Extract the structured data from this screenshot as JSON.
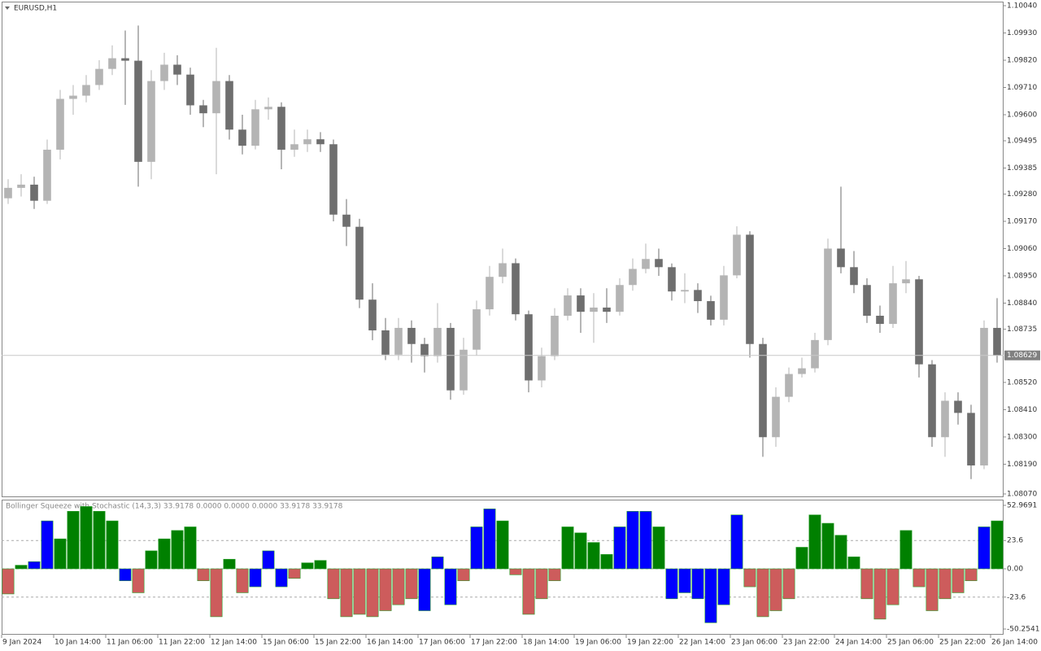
{
  "chart_data": [
    {
      "type": "candlestick",
      "title": "EURUSD,H1",
      "open": [
        1.09263,
        1.09305,
        1.09318,
        1.09253,
        1.09459,
        1.09664,
        1.09677,
        1.0972,
        1.09785,
        1.09828,
        1.09818,
        1.0941,
        1.09736,
        1.09802,
        1.09762,
        1.09638,
        1.09606,
        1.09736,
        1.0954,
        1.09475,
        1.09622,
        1.09632,
        1.09459,
        1.09481,
        1.09501,
        1.09481,
        1.09197,
        1.09148,
        1.08854,
        1.0873,
        1.08632,
        1.0874,
        1.08675,
        1.08626,
        1.0874,
        1.08488,
        1.08652,
        1.08815,
        1.08946,
        1.09001,
        1.08795,
        1.08528,
        1.08626,
        1.08789,
        1.08871,
        1.08805,
        1.08822,
        1.08805,
        1.08913,
        1.08978,
        1.09018,
        1.08985,
        1.08887,
        1.08893,
        1.08848,
        1.08773,
        1.08952,
        1.09116,
        1.08675,
        1.08299,
        1.08462,
        1.08554,
        1.08577,
        1.08691,
        1.0906,
        1.08985,
        1.08913,
        1.08789,
        1.08756,
        1.0892,
        1.08936,
        1.08593,
        1.08299,
        1.08446,
        1.08397,
        1.08185,
        1.0874
      ],
      "high": [
        1.0934,
        1.0936,
        1.0935,
        1.095,
        1.097,
        1.0972,
        1.0976,
        1.0982,
        1.0988,
        1.0994,
        1.0996,
        1.0978,
        1.0985,
        1.0984,
        1.0979,
        1.0966,
        1.0987,
        1.0976,
        1.096,
        1.0966,
        1.0967,
        1.0965,
        1.0954,
        1.0954,
        1.0953,
        1.095,
        1.0926,
        1.0918,
        1.0892,
        1.0878,
        1.0878,
        1.0877,
        1.087,
        1.0884,
        1.0876,
        1.087,
        1.0885,
        1.0899,
        1.0906,
        1.0902,
        1.0881,
        1.0866,
        1.0882,
        1.089,
        1.089,
        1.0888,
        1.089,
        1.0894,
        1.0902,
        1.0908,
        1.0906,
        1.09,
        1.0896,
        1.0892,
        1.0887,
        1.0899,
        1.0915,
        1.0913,
        1.087,
        1.085,
        1.0858,
        1.0862,
        1.0872,
        1.091,
        1.0931,
        1.0905,
        1.0894,
        1.0883,
        1.0899,
        1.0901,
        1.0895,
        1.0861,
        1.0848,
        1.0848,
        1.0843,
        1.0877,
        1.0886
      ],
      "low": [
        1.0924,
        1.0927,
        1.0922,
        1.0924,
        1.0942,
        1.096,
        1.0965,
        1.097,
        1.0976,
        1.0964,
        1.0931,
        1.0934,
        1.097,
        1.0972,
        1.096,
        1.0955,
        1.0936,
        1.095,
        1.0944,
        1.0946,
        1.0958,
        1.0938,
        1.0943,
        1.0945,
        1.0945,
        1.0917,
        1.0907,
        1.0882,
        1.0869,
        1.0861,
        1.0861,
        1.086,
        1.0856,
        1.086,
        1.0845,
        1.0847,
        1.0863,
        1.0879,
        1.0892,
        1.0877,
        1.0848,
        1.085,
        1.0861,
        1.0877,
        1.0872,
        1.0868,
        1.0876,
        1.0879,
        1.0889,
        1.0896,
        1.0895,
        1.0885,
        1.0884,
        1.088,
        1.0875,
        1.0875,
        1.0894,
        1.0862,
        1.0822,
        1.0826,
        1.0844,
        1.0854,
        1.0856,
        1.0867,
        1.0896,
        1.0888,
        1.0876,
        1.0872,
        1.0874,
        1.0888,
        1.0854,
        1.0826,
        1.0822,
        1.0835,
        1.0813,
        1.0817,
        1.086
      ],
      "close": [
        1.09305,
        1.09318,
        1.09253,
        1.09459,
        1.09664,
        1.09677,
        1.0972,
        1.09785,
        1.09828,
        1.09818,
        1.0941,
        1.09736,
        1.09802,
        1.09762,
        1.09638,
        1.09606,
        1.09736,
        1.0954,
        1.09475,
        1.09622,
        1.09632,
        1.09459,
        1.09481,
        1.09501,
        1.09481,
        1.09197,
        1.09148,
        1.08854,
        1.0873,
        1.08632,
        1.0874,
        1.08675,
        1.08626,
        1.0874,
        1.08488,
        1.08652,
        1.08815,
        1.08946,
        1.09001,
        1.08795,
        1.08528,
        1.08626,
        1.08789,
        1.08871,
        1.08805,
        1.08822,
        1.08805,
        1.08913,
        1.08978,
        1.09018,
        1.08985,
        1.08887,
        1.08893,
        1.08848,
        1.08773,
        1.08952,
        1.09116,
        1.08675,
        1.08299,
        1.08462,
        1.08554,
        1.08577,
        1.08691,
        1.0906,
        1.08985,
        1.08913,
        1.08789,
        1.08756,
        1.0892,
        1.08936,
        1.08593,
        1.08299,
        1.08446,
        1.08397,
        1.08185,
        1.0874,
        1.08629
      ],
      "up_color": "#b4b4b4",
      "down_color": "#6e6e6e",
      "ylim": [
        1.0807,
        1.1004
      ],
      "yticks": [
        {
          "value": 1.1004,
          "label": "1.10040"
        },
        {
          "value": 1.0993,
          "label": "1.09930"
        },
        {
          "value": 1.0982,
          "label": "1.09820"
        },
        {
          "value": 1.0971,
          "label": "1.09710"
        },
        {
          "value": 1.096,
          "label": "1.09600"
        },
        {
          "value": 1.09495,
          "label": "1.09495"
        },
        {
          "value": 1.09385,
          "label": "1.09385"
        },
        {
          "value": 1.0928,
          "label": "1.09280"
        },
        {
          "value": 1.0917,
          "label": "1.09170"
        },
        {
          "value": 1.0906,
          "label": "1.09060"
        },
        {
          "value": 1.0895,
          "label": "1.08950"
        },
        {
          "value": 1.0884,
          "label": "1.08840"
        },
        {
          "value": 1.08735,
          "label": "1.08735"
        },
        {
          "value": 1.0852,
          "label": "1.08520"
        },
        {
          "value": 1.0841,
          "label": "1.08410"
        },
        {
          "value": 1.083,
          "label": "1.08300"
        },
        {
          "value": 1.0819,
          "label": "1.08190"
        },
        {
          "value": 1.0807,
          "label": "1.08070"
        }
      ],
      "current_price": {
        "value": 1.08629,
        "label": "1.08629"
      }
    },
    {
      "type": "bar",
      "title": "Bollinger Squeeze with Stochastic (14,3,3) 33.9178 0.0000 0.0000 0.0000 33.9178 33.9178",
      "categories": [
        "9 Jan 2024",
        null,
        null,
        null,
        "10 Jan 14:00",
        null,
        null,
        null,
        "11 Jan 06:00",
        null,
        null,
        null,
        "11 Jan 22:00",
        null,
        null,
        null,
        "12 Jan 14:00",
        null,
        null,
        null,
        "15 Jan 06:00",
        null,
        null,
        null,
        "15 Jan 22:00",
        null,
        null,
        null,
        "16 Jan 14:00",
        null,
        null,
        null,
        "17 Jan 06:00",
        null,
        null,
        null,
        "17 Jan 22:00",
        null,
        null,
        null,
        "18 Jan 14:00",
        null,
        null,
        null,
        "19 Jan 06:00",
        null,
        null,
        null,
        "19 Jan 22:00",
        null,
        null,
        null,
        "22 Jan 14:00",
        null,
        null,
        null,
        "23 Jan 06:00",
        null,
        null,
        null,
        "23 Jan 22:00",
        null,
        null,
        null,
        "24 Jan 14:00",
        null,
        null,
        null,
        "25 Jan 06:00",
        null,
        null,
        null,
        "25 Jan 22:00",
        null,
        null,
        null,
        "26 Jan 14:00"
      ],
      "values": [
        -21,
        3,
        6,
        40,
        25,
        48,
        52,
        48,
        40,
        -10,
        -20,
        15,
        25,
        32,
        35,
        -10,
        -40,
        8,
        -20,
        -15,
        15,
        -15,
        -8,
        5,
        7,
        -25,
        -40,
        -38,
        -40,
        -35,
        -30,
        -25,
        -35,
        10,
        -30,
        -10,
        35,
        50,
        40,
        -5,
        -38,
        -25,
        -10,
        35,
        30,
        22,
        12,
        35,
        48,
        48,
        35,
        -25,
        -20,
        -25,
        -45,
        -30,
        45,
        -15,
        -40,
        -35,
        -25,
        18,
        45,
        38,
        28,
        10,
        -25,
        -42,
        -30,
        32,
        -15,
        -35,
        -25,
        -20,
        -10,
        35,
        40
      ],
      "colors": [
        "#cd5c5c",
        "#008000",
        "#0000ff",
        "#0000ff",
        "#008000",
        "#008000",
        "#008000",
        "#008000",
        "#008000",
        "#0000ff",
        "#cd5c5c",
        "#008000",
        "#008000",
        "#008000",
        "#008000",
        "#cd5c5c",
        "#cd5c5c",
        "#008000",
        "#cd5c5c",
        "#0000ff",
        "#0000ff",
        "#0000ff",
        "#cd5c5c",
        "#008000",
        "#008000",
        "#cd5c5c",
        "#cd5c5c",
        "#cd5c5c",
        "#cd5c5c",
        "#cd5c5c",
        "#cd5c5c",
        "#cd5c5c",
        "#0000ff",
        "#0000ff",
        "#0000ff",
        "#cd5c5c",
        "#0000ff",
        "#0000ff",
        "#008000",
        "#cd5c5c",
        "#cd5c5c",
        "#cd5c5c",
        "#cd5c5c",
        "#008000",
        "#008000",
        "#008000",
        "#008000",
        "#0000ff",
        "#0000ff",
        "#0000ff",
        "#008000",
        "#0000ff",
        "#0000ff",
        "#0000ff",
        "#0000ff",
        "#0000ff",
        "#0000ff",
        "#cd5c5c",
        "#cd5c5c",
        "#cd5c5c",
        "#cd5c5c",
        "#008000",
        "#008000",
        "#008000",
        "#008000",
        "#008000",
        "#cd5c5c",
        "#cd5c5c",
        "#cd5c5c",
        "#008000",
        "#cd5c5c",
        "#cd5c5c",
        "#cd5c5c",
        "#cd5c5c",
        "#cd5c5c",
        "#0000ff",
        "#008000"
      ],
      "ylim": [
        -50.2541,
        52.9691
      ],
      "yticks": [
        52.9691,
        23.6,
        {
          "value": 0,
          "label": "0.00"
        },
        -23.6,
        -50.2541
      ],
      "grid": true
    }
  ]
}
